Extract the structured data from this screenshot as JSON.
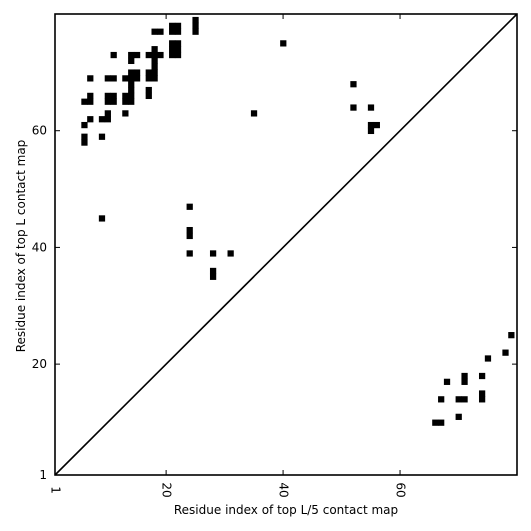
{
  "chart_data": {
    "type": "scatter",
    "title": "",
    "xlabel": "Residue index of top L/5 contact map",
    "ylabel": "Residue index of top L contact map",
    "xlim": [
      1,
      80
    ],
    "ylim": [
      1,
      80
    ],
    "x_ticks": [
      1,
      20,
      40,
      60
    ],
    "y_ticks": [
      1,
      20,
      40,
      60
    ],
    "x_tick_labels": [
      "1",
      "20",
      "40",
      "60"
    ],
    "y_tick_labels": [
      "1",
      "20",
      "40",
      "60"
    ],
    "grid": false,
    "marker": "filled-square",
    "marker_color": "#000000",
    "diagonal": {
      "from": [
        1,
        1
      ],
      "to": [
        80,
        80
      ],
      "color": "#000000"
    },
    "series": [
      {
        "region": "upper",
        "points": [
          [
            6,
            65
          ],
          [
            6,
            61
          ],
          [
            6,
            59
          ],
          [
            6,
            58
          ],
          [
            7,
            65
          ],
          [
            7,
            62
          ],
          [
            7,
            69
          ],
          [
            7,
            66
          ],
          [
            9,
            62
          ],
          [
            9,
            59
          ],
          [
            9,
            45
          ],
          [
            10,
            69
          ],
          [
            10,
            65
          ],
          [
            10,
            66
          ],
          [
            10,
            63
          ],
          [
            10,
            62
          ],
          [
            11,
            65
          ],
          [
            11,
            66
          ],
          [
            11,
            73
          ],
          [
            11,
            69
          ],
          [
            13,
            69
          ],
          [
            13,
            63
          ],
          [
            13,
            65
          ],
          [
            13,
            66
          ],
          [
            14,
            73
          ],
          [
            14,
            72
          ],
          [
            14,
            70
          ],
          [
            14,
            69
          ],
          [
            14,
            68
          ],
          [
            14,
            67
          ],
          [
            14,
            66
          ],
          [
            14,
            65
          ],
          [
            15,
            73
          ],
          [
            15,
            70
          ],
          [
            15,
            69
          ],
          [
            17,
            73
          ],
          [
            17,
            70
          ],
          [
            17,
            69
          ],
          [
            17,
            67
          ],
          [
            17,
            66
          ],
          [
            18,
            77
          ],
          [
            18,
            74
          ],
          [
            18,
            73
          ],
          [
            18,
            72
          ],
          [
            18,
            71
          ],
          [
            18,
            70
          ],
          [
            18,
            69
          ],
          [
            19,
            77
          ],
          [
            19,
            73
          ],
          [
            21,
            78
          ],
          [
            21,
            77
          ],
          [
            21,
            75
          ],
          [
            21,
            74
          ],
          [
            21,
            73
          ],
          [
            22,
            78
          ],
          [
            22,
            77
          ],
          [
            22,
            75
          ],
          [
            22,
            74
          ],
          [
            22,
            73
          ],
          [
            25,
            79
          ],
          [
            25,
            78
          ],
          [
            25,
            77
          ],
          [
            24,
            47
          ],
          [
            24,
            43
          ],
          [
            24,
            42
          ],
          [
            24,
            39
          ],
          [
            28,
            39
          ],
          [
            28,
            36
          ],
          [
            28,
            35
          ],
          [
            31,
            39
          ],
          [
            35,
            63
          ],
          [
            40,
            75
          ],
          [
            52,
            68
          ],
          [
            52,
            64
          ],
          [
            55,
            64
          ],
          [
            55,
            61
          ],
          [
            55,
            60
          ],
          [
            56,
            61
          ]
        ]
      },
      {
        "region": "lower",
        "points": [
          [
            66,
            10
          ],
          [
            67,
            10
          ],
          [
            67,
            14
          ],
          [
            68,
            17
          ],
          [
            70,
            14
          ],
          [
            70,
            11
          ],
          [
            71,
            14
          ],
          [
            71,
            18
          ],
          [
            71,
            17
          ],
          [
            74,
            15
          ],
          [
            74,
            14
          ],
          [
            74,
            18
          ],
          [
            75,
            21
          ],
          [
            78,
            22
          ],
          [
            79,
            25
          ]
        ]
      }
    ]
  }
}
